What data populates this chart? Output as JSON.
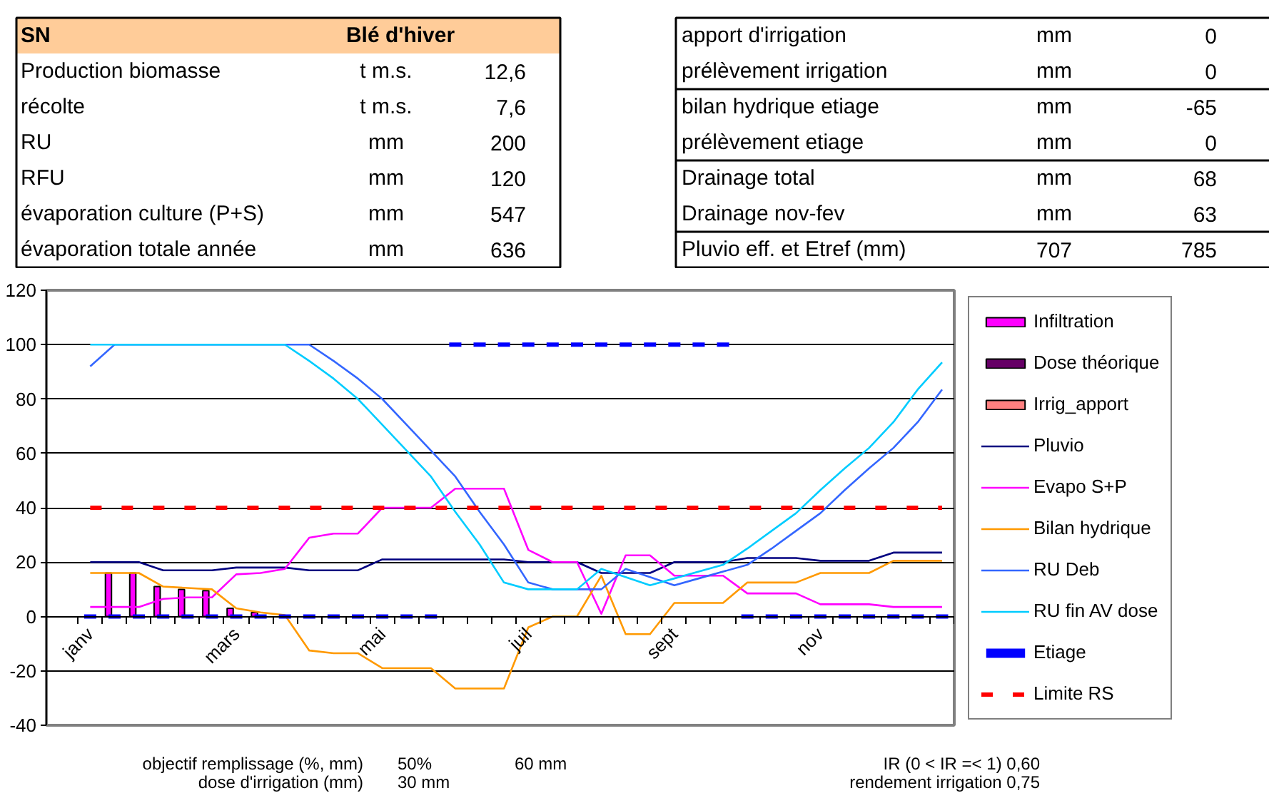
{
  "chart_data": [
    {
      "type": "other",
      "title": "SN",
      "subtitle": "Blé d'hiver",
      "annotations": [
        "Production biomasse",
        "t m.s.",
        "12,6",
        "récolte",
        "t m.s.",
        "7,6",
        "RU",
        "mm",
        "200",
        "RFU",
        "mm",
        "120",
        "évaporation culture (P+S)",
        "mm",
        "547",
        "évaporation totale année",
        "mm",
        "636"
      ]
    },
    {
      "type": "other",
      "annotations": [
        "apport d'irrigation",
        "mm",
        "0",
        "prélèvement irrigation",
        "mm",
        "0",
        "bilan hydrique etiage",
        "mm",
        "-65",
        "prélèvement etiage",
        "mm",
        "0",
        "Drainage total",
        "mm",
        "68",
        "Drainage nov-fev",
        "mm",
        "63",
        "Pluvio eff. et Etref (mm)",
        "707",
        "785"
      ]
    },
    {
      "type": "line",
      "categories": [
        "janv",
        null,
        null,
        null,
        null,
        null,
        "mars",
        null,
        null,
        null,
        null,
        null,
        "mai",
        null,
        null,
        null,
        null,
        null,
        "juil",
        null,
        null,
        null,
        null,
        null,
        "sept",
        null,
        null,
        null,
        null,
        null,
        "nov",
        null,
        null,
        null,
        null,
        null
      ],
      "ylim": [
        -40,
        120
      ],
      "yticks": [
        -40,
        -20,
        0,
        20,
        40,
        60,
        80,
        100,
        120
      ],
      "grid": "y",
      "legend": "right",
      "annotations": [
        "objectif remplissage (%, mm)",
        "50%",
        "60 mm",
        "IR (0 < IR =< 1) 0,60",
        "dose d'irrigation (mm)",
        "30 mm",
        "rendement irrigation 0,75"
      ],
      "series": [
        {
          "name": "Infiltration",
          "type": "bar",
          "color": "#ff00ff",
          "values": [
            null,
            16,
            16,
            11,
            10,
            9.5,
            3,
            1.5,
            null,
            null,
            null,
            null,
            null,
            null,
            null,
            null,
            null,
            null,
            null,
            null,
            null,
            null,
            null,
            null,
            null,
            null,
            null,
            null,
            null,
            null,
            null,
            null,
            null,
            null,
            null,
            null
          ]
        },
        {
          "name": "Dose théorique",
          "type": "bar",
          "color": "#660066",
          "values": [
            null,
            null,
            null,
            null,
            null,
            null,
            null,
            null,
            null,
            null,
            null,
            null,
            null,
            null,
            null,
            null,
            null,
            null,
            null,
            null,
            null,
            null,
            null,
            null,
            null,
            null,
            null,
            null,
            null,
            null,
            null,
            null,
            null,
            null,
            null,
            null
          ]
        },
        {
          "name": "Irrig_apport",
          "type": "bar",
          "color": "#ff8080",
          "values": [
            null,
            null,
            null,
            null,
            null,
            null,
            null,
            null,
            null,
            null,
            null,
            null,
            null,
            null,
            null,
            null,
            null,
            null,
            null,
            null,
            null,
            null,
            null,
            null,
            null,
            null,
            null,
            null,
            null,
            null,
            null,
            null,
            null,
            null,
            null,
            null
          ]
        },
        {
          "name": "Pluvio",
          "color": "#000080",
          "values": [
            20,
            20,
            20,
            17,
            17,
            17,
            18,
            18,
            18,
            17,
            17,
            17,
            21,
            21,
            21,
            21,
            21,
            21,
            20,
            20,
            20,
            16,
            16,
            16,
            20,
            20,
            20,
            21.5,
            21.5,
            21.5,
            20.5,
            20.5,
            20.5,
            23.5,
            23.5,
            23.5
          ]
        },
        {
          "name": "Evapo S+P",
          "color": "#ff00ff",
          "values": [
            3.5,
            3.5,
            3.5,
            6.5,
            7,
            7,
            15.5,
            16,
            17.5,
            29,
            30.5,
            30.5,
            40,
            40,
            40,
            47,
            47,
            47,
            24.5,
            20,
            20,
            1,
            22.5,
            22.5,
            15,
            15,
            15,
            8.5,
            8.5,
            8.5,
            4.5,
            4.5,
            4.5,
            3.5,
            3.5,
            3.5
          ]
        },
        {
          "name": "Bilan hydrique",
          "color": "#ff9900",
          "values": [
            16,
            16,
            16,
            11,
            10.5,
            10,
            3,
            1.5,
            0.5,
            -12.5,
            -13.5,
            -13.5,
            -19,
            -19,
            -19,
            -26.5,
            -26.5,
            -26.5,
            -4,
            0,
            0,
            15,
            -6.5,
            -6.5,
            5,
            5,
            5,
            12.5,
            12.5,
            12.5,
            16,
            16,
            16,
            20.5,
            20.5,
            20.5
          ]
        },
        {
          "name": "RU Deb",
          "color": "#3366ff",
          "values": [
            92,
            100,
            100,
            100,
            100,
            100,
            100,
            100,
            100,
            100,
            94,
            87.5,
            80,
            70.5,
            61,
            51.5,
            38.5,
            26.5,
            12.5,
            10,
            10,
            10,
            17.5,
            14.5,
            11.5,
            14,
            16.5,
            19,
            25,
            31.5,
            38,
            46.5,
            54.5,
            62,
            71.5,
            83.5
          ]
        },
        {
          "name": "RU fin AV dose",
          "color": "#00ccff",
          "values": [
            100,
            100,
            100,
            100,
            100,
            100,
            100,
            100,
            100,
            94,
            87.5,
            80,
            70.5,
            61,
            51.5,
            38.5,
            26.5,
            12.5,
            10,
            10,
            10,
            17.5,
            14.5,
            11.5,
            14,
            16.5,
            19,
            25,
            31.5,
            38,
            46.5,
            54.5,
            62,
            71.5,
            83.5,
            93.5
          ]
        },
        {
          "name": "Etiage",
          "type": "scatter",
          "color": "#0000ff",
          "values": [
            0,
            0,
            0,
            0,
            0,
            0,
            0,
            0,
            0,
            0,
            0,
            0,
            0,
            0,
            0,
            100,
            100,
            100,
            100,
            100,
            100,
            100,
            100,
            100,
            100,
            100,
            100,
            0,
            0,
            0,
            0,
            0,
            0,
            0,
            0,
            0
          ]
        },
        {
          "name": "Limite RS",
          "line_style": "dashed",
          "color": "#ff0000",
          "values": [
            40,
            40,
            40,
            40,
            40,
            40,
            40,
            40,
            40,
            40,
            40,
            40,
            40,
            40,
            40,
            40,
            40,
            40,
            40,
            40,
            40,
            40,
            40,
            40,
            40,
            40,
            40,
            40,
            40,
            40,
            40,
            40,
            40,
            40,
            40,
            40
          ]
        }
      ]
    }
  ]
}
